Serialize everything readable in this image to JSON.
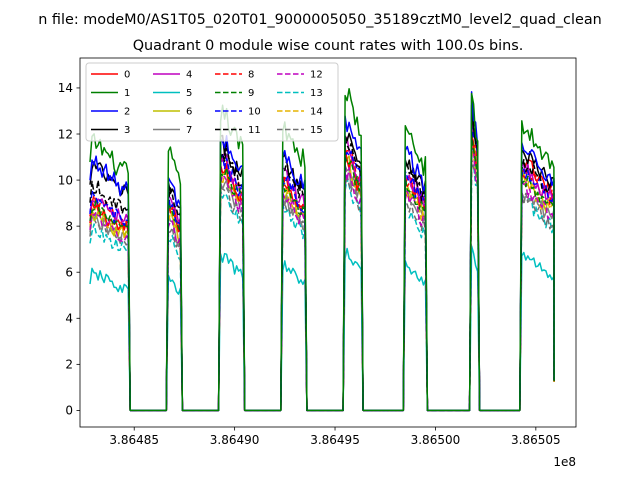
{
  "suptitle": "n file: modeM0/AS1T05_020T01_9000005050_35189cztM0_level2_quad_clean",
  "chart_data": {
    "type": "line",
    "title": "Quadrant 0 module wise count rates with 100.0s bins.",
    "xlabel": "",
    "ylabel": "",
    "x_offset_label": "1e8",
    "xlim": [
      386482300,
      386507000
    ],
    "ylim": [
      -0.72,
      15.3
    ],
    "xticks": [
      386485000,
      386490000,
      386495000,
      386500000,
      386505000
    ],
    "xtick_labels": [
      "3.86485",
      "3.86490",
      "3.86495",
      "3.86500",
      "3.86505"
    ],
    "yticks": [
      0,
      2,
      4,
      6,
      8,
      10,
      12,
      14
    ],
    "ytick_labels": [
      "0",
      "2",
      "4",
      "6",
      "8",
      "10",
      "12",
      "14"
    ],
    "grid": false,
    "legend_position": "top-left",
    "bin_seconds": 100,
    "orbit_segments": [
      {
        "start": 386482800,
        "end": 386484700,
        "levels": [
          8.3,
          11.0,
          10.2,
          10.0,
          8.8,
          5.6,
          8.1,
          7.9,
          8.6,
          8.4,
          8.7,
          9.2,
          8.0,
          7.4,
          8.2,
          7.7
        ]
      },
      {
        "start": 386486700,
        "end": 386487300,
        "levels": [
          8.5,
          10.5,
          9.4,
          9.2,
          8.6,
          5.4,
          8.0,
          7.8,
          8.4,
          8.2,
          8.5,
          8.9,
          7.8,
          7.2,
          8.0,
          7.5
        ]
      },
      {
        "start": 386489300,
        "end": 386490400,
        "levels": [
          9.9,
          12.2,
          11.1,
          10.9,
          10.3,
          6.3,
          9.6,
          9.3,
          10.1,
          9.8,
          10.2,
          10.6,
          9.3,
          8.7,
          9.6,
          9.0
        ]
      },
      {
        "start": 386492400,
        "end": 386493500,
        "levels": [
          9.4,
          11.6,
          10.4,
          10.2,
          9.6,
          5.9,
          9.0,
          8.7,
          9.5,
          9.2,
          9.5,
          10.0,
          8.8,
          8.2,
          9.0,
          8.5
        ]
      },
      {
        "start": 386495500,
        "end": 386496300,
        "levels": [
          10.4,
          13.0,
          11.8,
          11.5,
          10.9,
          6.5,
          10.2,
          9.8,
          10.7,
          10.3,
          10.8,
          11.2,
          9.8,
          9.2,
          10.1,
          9.5
        ]
      },
      {
        "start": 386498500,
        "end": 386499500,
        "levels": [
          9.5,
          11.3,
          10.5,
          10.3,
          9.7,
          5.9,
          9.1,
          8.8,
          9.5,
          9.2,
          9.6,
          10.0,
          8.8,
          8.2,
          9.0,
          8.5
        ]
      },
      {
        "start": 386501800,
        "end": 386502100,
        "levels": [
          11.0,
          12.6,
          12.7,
          12.2,
          11.8,
          6.6,
          11.1,
          10.7,
          11.5,
          11.2,
          11.6,
          12.0,
          10.7,
          10.0,
          11.0,
          10.4
        ]
      },
      {
        "start": 386504300,
        "end": 386505900,
        "levels": [
          10.1,
          11.5,
          10.7,
          10.5,
          9.9,
          6.3,
          9.4,
          9.0,
          9.8,
          9.5,
          9.9,
          10.2,
          9.1,
          8.5,
          9.3,
          8.7
        ]
      }
    ],
    "end_value": 1.3,
    "gap_value": 0,
    "series": [
      {
        "name": "0",
        "color": "#ff0000",
        "dash": "solid"
      },
      {
        "name": "1",
        "color": "#008000",
        "dash": "solid"
      },
      {
        "name": "2",
        "color": "#0000ff",
        "dash": "solid"
      },
      {
        "name": "3",
        "color": "#000000",
        "dash": "solid"
      },
      {
        "name": "4",
        "color": "#bf00bf",
        "dash": "solid"
      },
      {
        "name": "5",
        "color": "#00bfbf",
        "dash": "solid"
      },
      {
        "name": "6",
        "color": "#bfbf00",
        "dash": "solid"
      },
      {
        "name": "7",
        "color": "#808080",
        "dash": "solid"
      },
      {
        "name": "8",
        "color": "#ff0000",
        "dash": "dashed"
      },
      {
        "name": "9",
        "color": "#008000",
        "dash": "dashed"
      },
      {
        "name": "10",
        "color": "#0000ff",
        "dash": "dashed"
      },
      {
        "name": "11",
        "color": "#000000",
        "dash": "dashed"
      },
      {
        "name": "12",
        "color": "#bf00bf",
        "dash": "dashed"
      },
      {
        "name": "13",
        "color": "#00bfbf",
        "dash": "dashed"
      },
      {
        "name": "14",
        "color": "#e6b400",
        "dash": "dashed"
      },
      {
        "name": "15",
        "color": "#707070",
        "dash": "dashed"
      }
    ]
  }
}
